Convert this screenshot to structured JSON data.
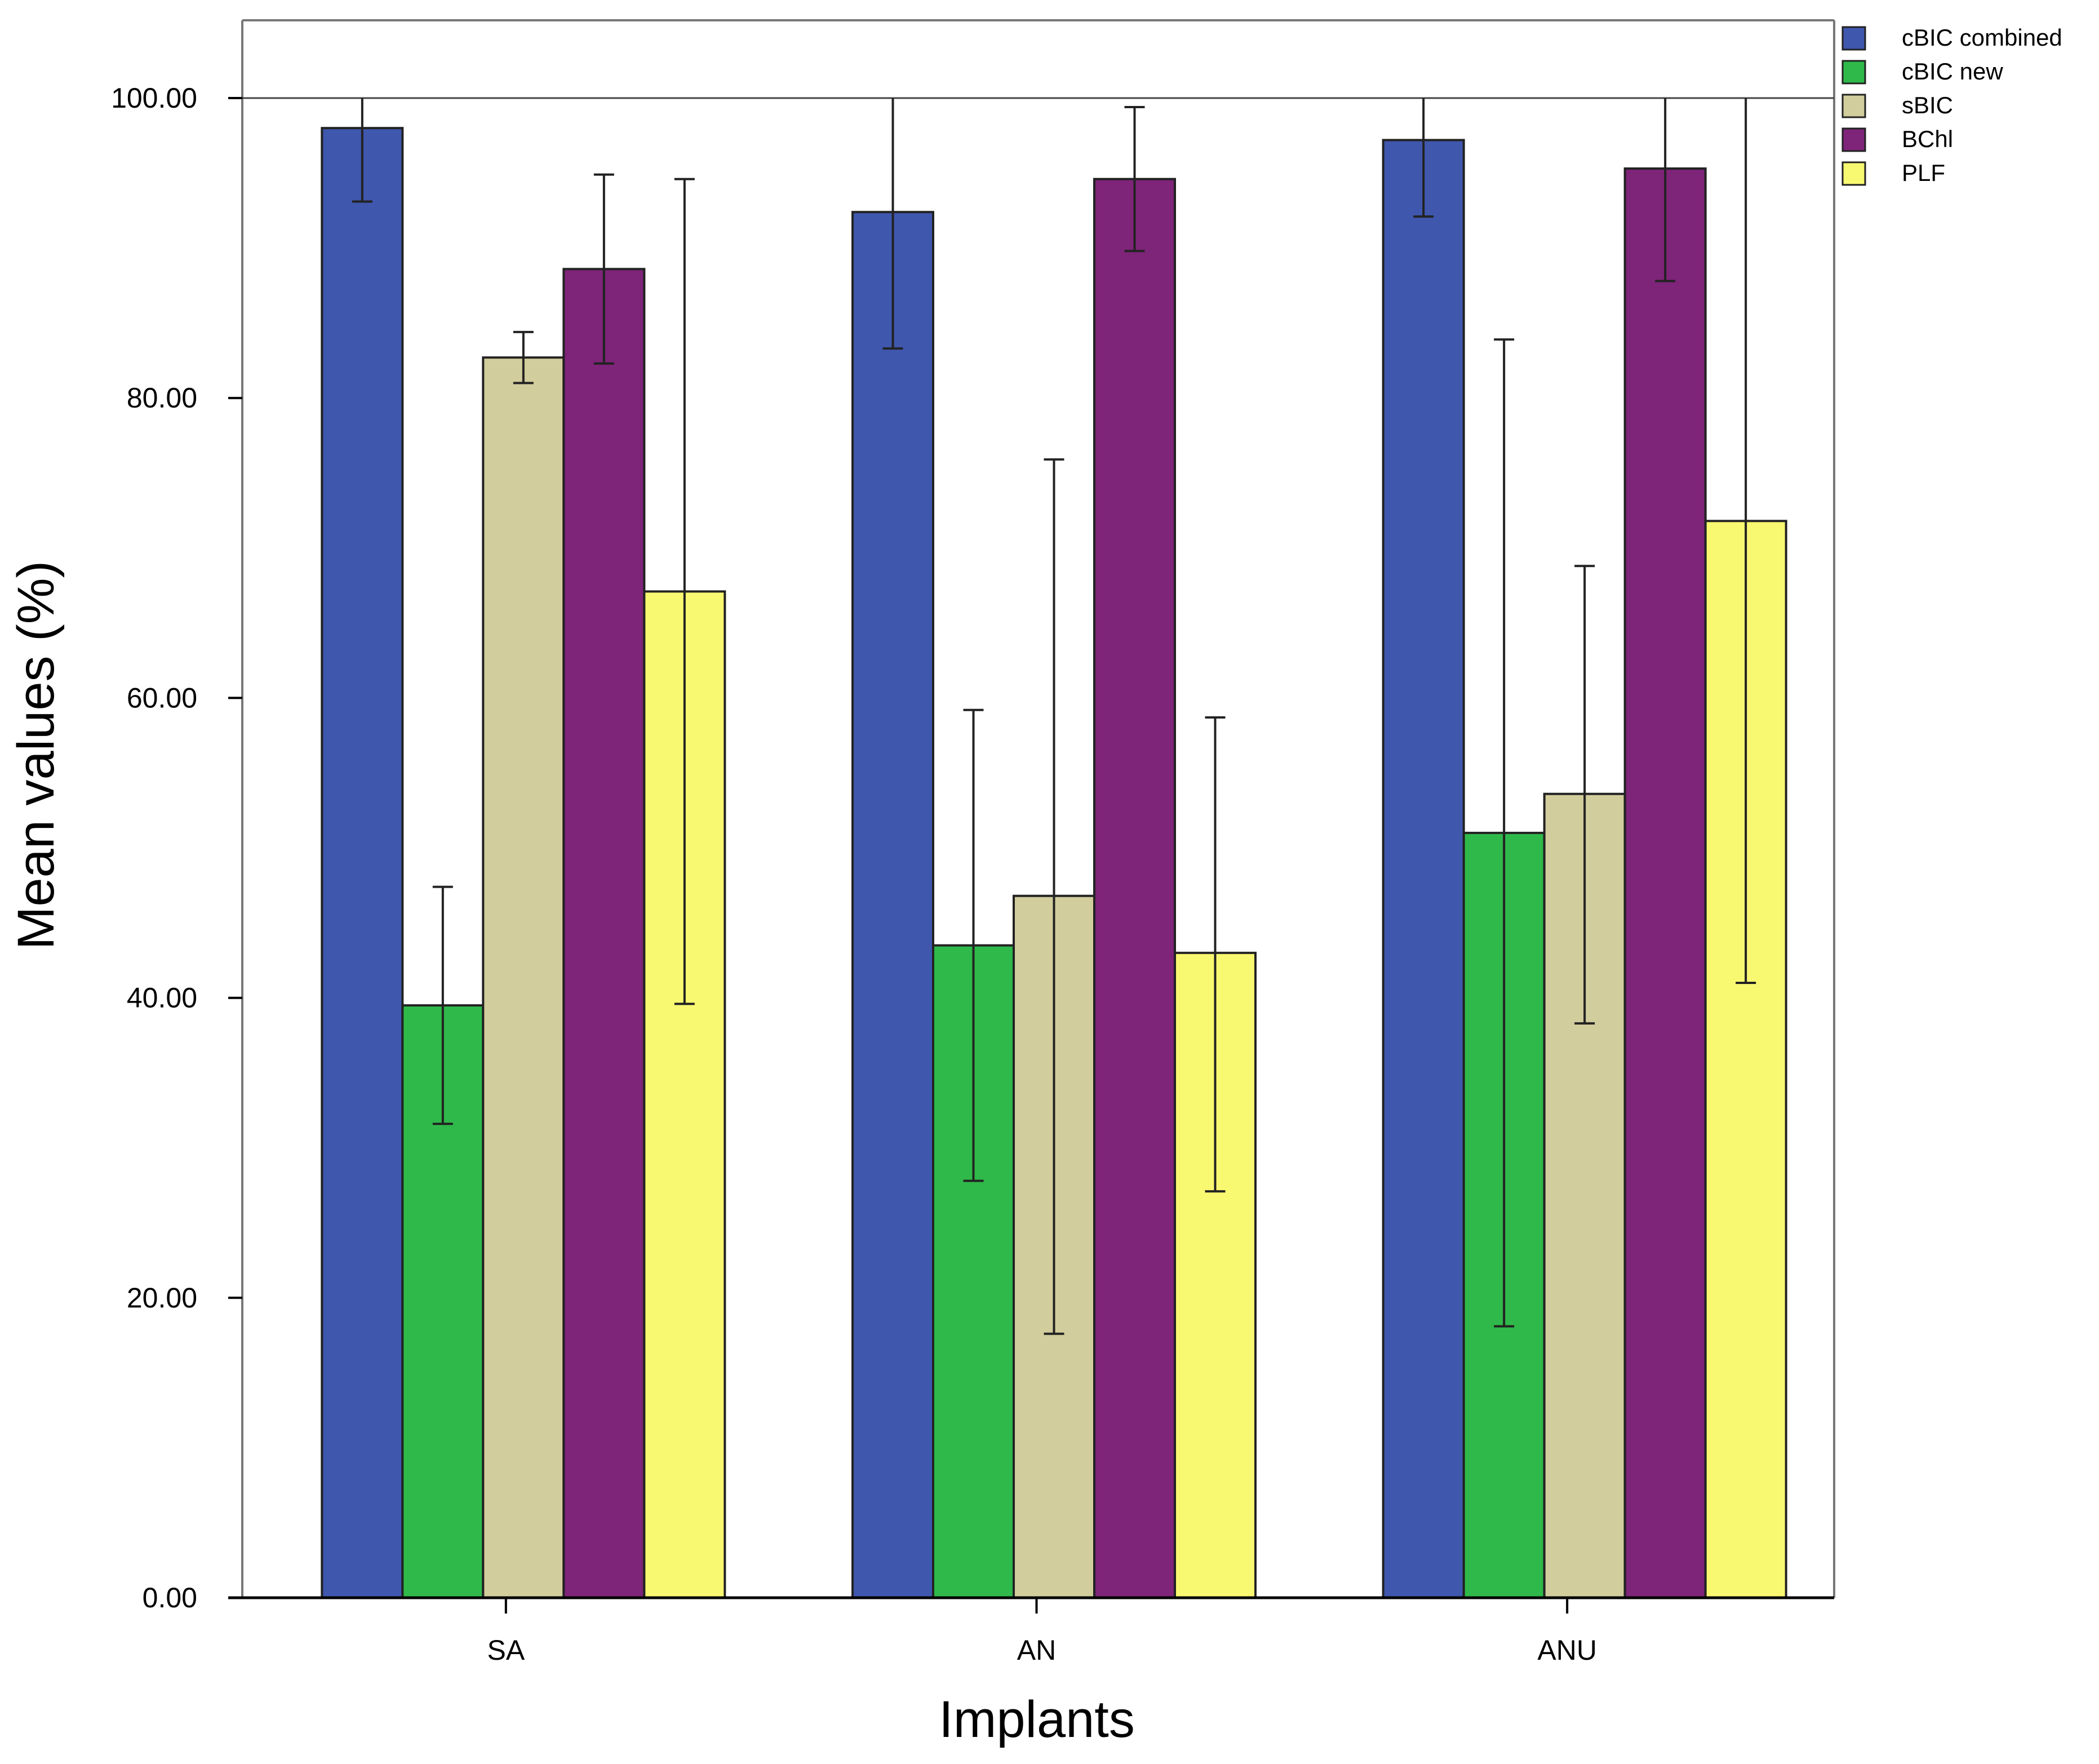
{
  "chart_data": {
    "type": "bar",
    "title": "",
    "xlabel": "Implants",
    "ylabel": "Mean values (%)",
    "ylim": [
      0,
      100
    ],
    "y_ticks": [
      "0.00",
      "20.00",
      "40.00",
      "60.00",
      "80.00",
      "100.00"
    ],
    "grid": false,
    "legend_position": "top-right",
    "categories": [
      "SA",
      "AN",
      "ANU"
    ],
    "series": [
      {
        "name": "cBIC combined",
        "color": "#3f57ad",
        "values": [
          98.0,
          92.4,
          97.2
        ],
        "error_low": [
          93.1,
          83.3,
          92.1
        ],
        "error_high": [
          100.0,
          100.0,
          100.0
        ]
      },
      {
        "name": "cBIC new",
        "color": "#2fb94a",
        "values": [
          39.5,
          43.5,
          51.0
        ],
        "error_low": [
          31.6,
          27.8,
          18.1
        ],
        "error_high": [
          47.4,
          59.2,
          83.9
        ]
      },
      {
        "name": "sBIC",
        "color": "#d2cd9c",
        "values": [
          82.7,
          46.8,
          53.6
        ],
        "error_low": [
          81.0,
          17.6,
          38.3
        ],
        "error_high": [
          84.4,
          75.9,
          68.8
        ]
      },
      {
        "name": "BChl",
        "color": "#7e2479",
        "values": [
          88.6,
          94.6,
          95.3
        ],
        "error_low": [
          82.3,
          89.8,
          87.8
        ],
        "error_high": [
          94.9,
          99.4,
          100.0
        ]
      },
      {
        "name": "PLF",
        "color": "#f9f871",
        "values": [
          67.1,
          43.0,
          71.8
        ],
        "error_low": [
          39.6,
          27.1,
          41.0
        ],
        "error_high": [
          94.6,
          58.7,
          100.0
        ]
      }
    ]
  }
}
